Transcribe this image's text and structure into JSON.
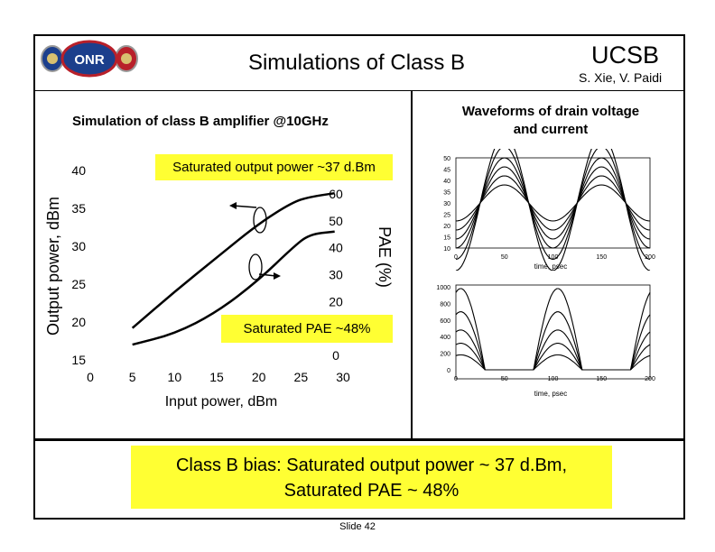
{
  "header": {
    "title": "Simulations of Class B",
    "org": "UCSB",
    "authors": "S. Xie, V. Paidi"
  },
  "logo": {
    "text": "OFFICE OF NAVAL RESEARCH"
  },
  "left_panel": {
    "heading": "Simulation of class B amplifier @10GHz",
    "annotation_power": "Saturated output power ~37 d.Bm",
    "annotation_pae": "Saturated PAE ~48%"
  },
  "right_panel": {
    "heading_line1": "Waveforms of drain voltage",
    "heading_line2": "and current"
  },
  "summary": {
    "line1": "Class B bias: Saturated output power ~ 37 d.Bm,",
    "line2": "Saturated PAE ~ 48%"
  },
  "footer": {
    "slide": "Slide 42"
  },
  "chart_data": [
    {
      "type": "line",
      "xlabel": "Input power, dBm",
      "ylabel": "Output power, dBm",
      "y2label": "PAE (%)",
      "xlim": [
        0,
        30
      ],
      "ylim": [
        15,
        40
      ],
      "y2lim": [
        0,
        60
      ],
      "x_ticks": [
        "0",
        "5",
        "10",
        "15",
        "20",
        "25",
        "30"
      ],
      "y_ticks": [
        "15",
        "20",
        "25",
        "30",
        "35",
        "40"
      ],
      "y2_ticks": [
        "0",
        "10",
        "20",
        "30",
        "40",
        "50",
        "60"
      ],
      "series": [
        {
          "axis": "left",
          "x": [
            5,
            10,
            15,
            20,
            24,
            26,
            29
          ],
          "y": [
            19.2,
            24,
            28.5,
            33,
            35.8,
            36.5,
            37
          ]
        },
        {
          "axis": "right",
          "x": [
            5,
            10,
            15,
            20,
            24,
            26,
            29
          ],
          "y": [
            4,
            8,
            16,
            28,
            40,
            45,
            46
          ]
        }
      ]
    },
    {
      "type": "line",
      "xlabel": "time, psec",
      "ylabel": "",
      "xlim": [
        0,
        200
      ],
      "ylim": [
        10,
        50
      ],
      "x_ticks": [
        "0",
        "50",
        "100",
        "150",
        "200"
      ],
      "y_ticks": [
        "10",
        "15",
        "20",
        "25",
        "30",
        "35",
        "40",
        "45",
        "50"
      ],
      "amplitudes": [
        8,
        12,
        16,
        20,
        25,
        30
      ]
    },
    {
      "type": "line",
      "xlabel": "time, psec",
      "ylabel": "",
      "xlim": [
        0,
        200
      ],
      "ylim": [
        0,
        1000
      ],
      "x_ticks": [
        "0",
        "50",
        "100",
        "150",
        "200"
      ],
      "y_ticks": [
        "0",
        "200",
        "400",
        "600",
        "800",
        "1000"
      ],
      "amplitudes": [
        180,
        320,
        480,
        700,
        980
      ]
    }
  ]
}
